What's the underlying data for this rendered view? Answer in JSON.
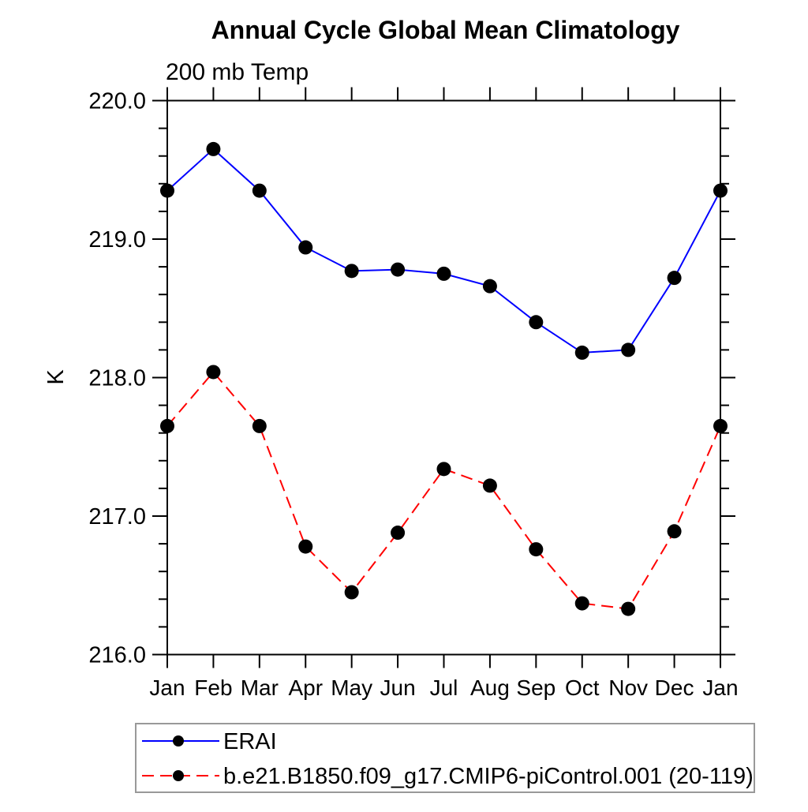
{
  "title": "Annual Cycle Global Mean Climatology",
  "subtitle": "200 mb Temp",
  "ylabel": "K",
  "legend": {
    "position": "bottom-left",
    "entries": [
      {
        "label": "ERAI",
        "color": "#0000ff",
        "style": "solid",
        "marker": "black-dot"
      },
      {
        "label": "b.e21.B1850.f09_g17.CMIP6-piControl.001 (20-119)",
        "color": "#ff0000",
        "style": "dashed",
        "marker": "black-dot"
      }
    ]
  },
  "chart_data": {
    "type": "line",
    "title": "Annual Cycle Global Mean Climatology",
    "subtitle": "200 mb Temp",
    "xlabel": "",
    "ylabel": "K",
    "categories": [
      "Jan",
      "Feb",
      "Mar",
      "Apr",
      "May",
      "Jun",
      "Jul",
      "Aug",
      "Sep",
      "Oct",
      "Nov",
      "Dec",
      "Jan"
    ],
    "ylim": [
      216.0,
      220.0
    ],
    "ytick_major": 1.0,
    "ytick_minor": 0.2,
    "ytick_labels": [
      "216.0",
      "217.0",
      "218.0",
      "219.0",
      "220.0"
    ],
    "grid": false,
    "legend_position": "bottom-left",
    "marker": {
      "shape": "circle",
      "color": "#000000"
    },
    "axis_color": "#000000",
    "series": [
      {
        "name": "ERAI",
        "color": "#0000ff",
        "style": "solid",
        "values": [
          219.35,
          219.65,
          219.35,
          218.94,
          218.77,
          218.78,
          218.75,
          218.66,
          218.4,
          218.18,
          218.2,
          218.72,
          219.35
        ]
      },
      {
        "name": "b.e21.B1850.f09_g17.CMIP6-piControl.001 (20-119)",
        "color": "#ff0000",
        "style": "dashed",
        "values": [
          217.65,
          218.04,
          217.65,
          216.78,
          216.45,
          216.88,
          217.34,
          217.22,
          216.76,
          216.37,
          216.33,
          216.89,
          217.65
        ]
      }
    ]
  }
}
